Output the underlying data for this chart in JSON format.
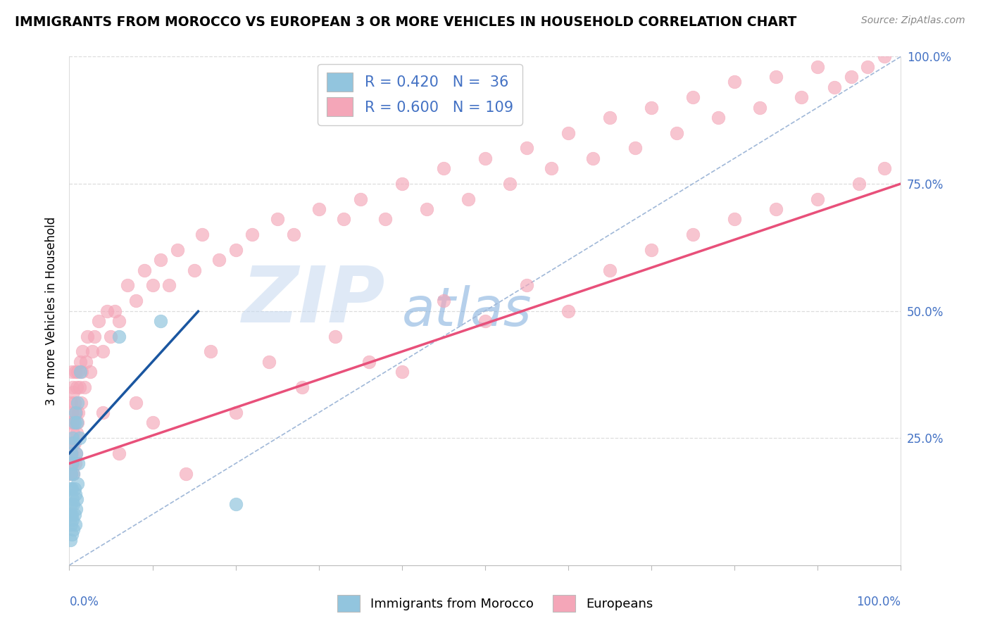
{
  "title": "IMMIGRANTS FROM MOROCCO VS EUROPEAN 3 OR MORE VEHICLES IN HOUSEHOLD CORRELATION CHART",
  "source": "Source: ZipAtlas.com",
  "ylabel": "3 or more Vehicles in Household",
  "legend_r_blue": "R = 0.420",
  "legend_n_blue": "N =  36",
  "legend_r_pink": "R = 0.600",
  "legend_n_pink": "N = 109",
  "blue_color": "#92c5de",
  "pink_color": "#f4a6b8",
  "blue_line_color": "#1a56a0",
  "pink_line_color": "#e8507a",
  "zip_color": "#c5d8f0",
  "atlas_color": "#7aabdc",
  "blue_scatter_x": [
    0.001,
    0.001,
    0.001,
    0.002,
    0.002,
    0.002,
    0.002,
    0.003,
    0.003,
    0.003,
    0.003,
    0.004,
    0.004,
    0.004,
    0.005,
    0.005,
    0.005,
    0.005,
    0.006,
    0.006,
    0.006,
    0.007,
    0.007,
    0.007,
    0.008,
    0.008,
    0.009,
    0.009,
    0.01,
    0.01,
    0.011,
    0.012,
    0.013,
    0.06,
    0.11,
    0.2
  ],
  "blue_scatter_y": [
    0.05,
    0.1,
    0.15,
    0.08,
    0.12,
    0.18,
    0.22,
    0.06,
    0.1,
    0.15,
    0.2,
    0.09,
    0.13,
    0.25,
    0.07,
    0.12,
    0.18,
    0.24,
    0.1,
    0.15,
    0.28,
    0.08,
    0.14,
    0.3,
    0.11,
    0.22,
    0.13,
    0.28,
    0.16,
    0.32,
    0.2,
    0.25,
    0.38,
    0.45,
    0.48,
    0.12
  ],
  "pink_scatter_x": [
    0.001,
    0.001,
    0.002,
    0.002,
    0.002,
    0.003,
    0.003,
    0.003,
    0.004,
    0.004,
    0.004,
    0.005,
    0.005,
    0.005,
    0.006,
    0.006,
    0.007,
    0.007,
    0.008,
    0.008,
    0.009,
    0.009,
    0.01,
    0.01,
    0.011,
    0.012,
    0.013,
    0.014,
    0.015,
    0.016,
    0.018,
    0.02,
    0.022,
    0.025,
    0.028,
    0.03,
    0.035,
    0.04,
    0.045,
    0.05,
    0.055,
    0.06,
    0.07,
    0.08,
    0.09,
    0.1,
    0.11,
    0.12,
    0.13,
    0.15,
    0.16,
    0.18,
    0.2,
    0.22,
    0.25,
    0.27,
    0.3,
    0.33,
    0.35,
    0.38,
    0.4,
    0.43,
    0.45,
    0.48,
    0.5,
    0.53,
    0.55,
    0.58,
    0.6,
    0.63,
    0.65,
    0.68,
    0.7,
    0.73,
    0.75,
    0.78,
    0.8,
    0.83,
    0.85,
    0.88,
    0.9,
    0.92,
    0.94,
    0.96,
    0.98,
    0.04,
    0.06,
    0.08,
    0.1,
    0.14,
    0.17,
    0.2,
    0.24,
    0.28,
    0.32,
    0.36,
    0.4,
    0.45,
    0.5,
    0.55,
    0.6,
    0.65,
    0.7,
    0.75,
    0.8,
    0.85,
    0.9,
    0.95,
    0.98
  ],
  "pink_scatter_y": [
    0.2,
    0.28,
    0.18,
    0.24,
    0.32,
    0.22,
    0.3,
    0.38,
    0.2,
    0.28,
    0.35,
    0.18,
    0.26,
    0.34,
    0.24,
    0.32,
    0.2,
    0.38,
    0.22,
    0.3,
    0.26,
    0.35,
    0.28,
    0.38,
    0.3,
    0.35,
    0.4,
    0.32,
    0.38,
    0.42,
    0.35,
    0.4,
    0.45,
    0.38,
    0.42,
    0.45,
    0.48,
    0.42,
    0.5,
    0.45,
    0.5,
    0.48,
    0.55,
    0.52,
    0.58,
    0.55,
    0.6,
    0.55,
    0.62,
    0.58,
    0.65,
    0.6,
    0.62,
    0.65,
    0.68,
    0.65,
    0.7,
    0.68,
    0.72,
    0.68,
    0.75,
    0.7,
    0.78,
    0.72,
    0.8,
    0.75,
    0.82,
    0.78,
    0.85,
    0.8,
    0.88,
    0.82,
    0.9,
    0.85,
    0.92,
    0.88,
    0.95,
    0.9,
    0.96,
    0.92,
    0.98,
    0.94,
    0.96,
    0.98,
    1.0,
    0.3,
    0.22,
    0.32,
    0.28,
    0.18,
    0.42,
    0.3,
    0.4,
    0.35,
    0.45,
    0.4,
    0.38,
    0.52,
    0.48,
    0.55,
    0.5,
    0.58,
    0.62,
    0.65,
    0.68,
    0.7,
    0.72,
    0.75,
    0.78
  ]
}
